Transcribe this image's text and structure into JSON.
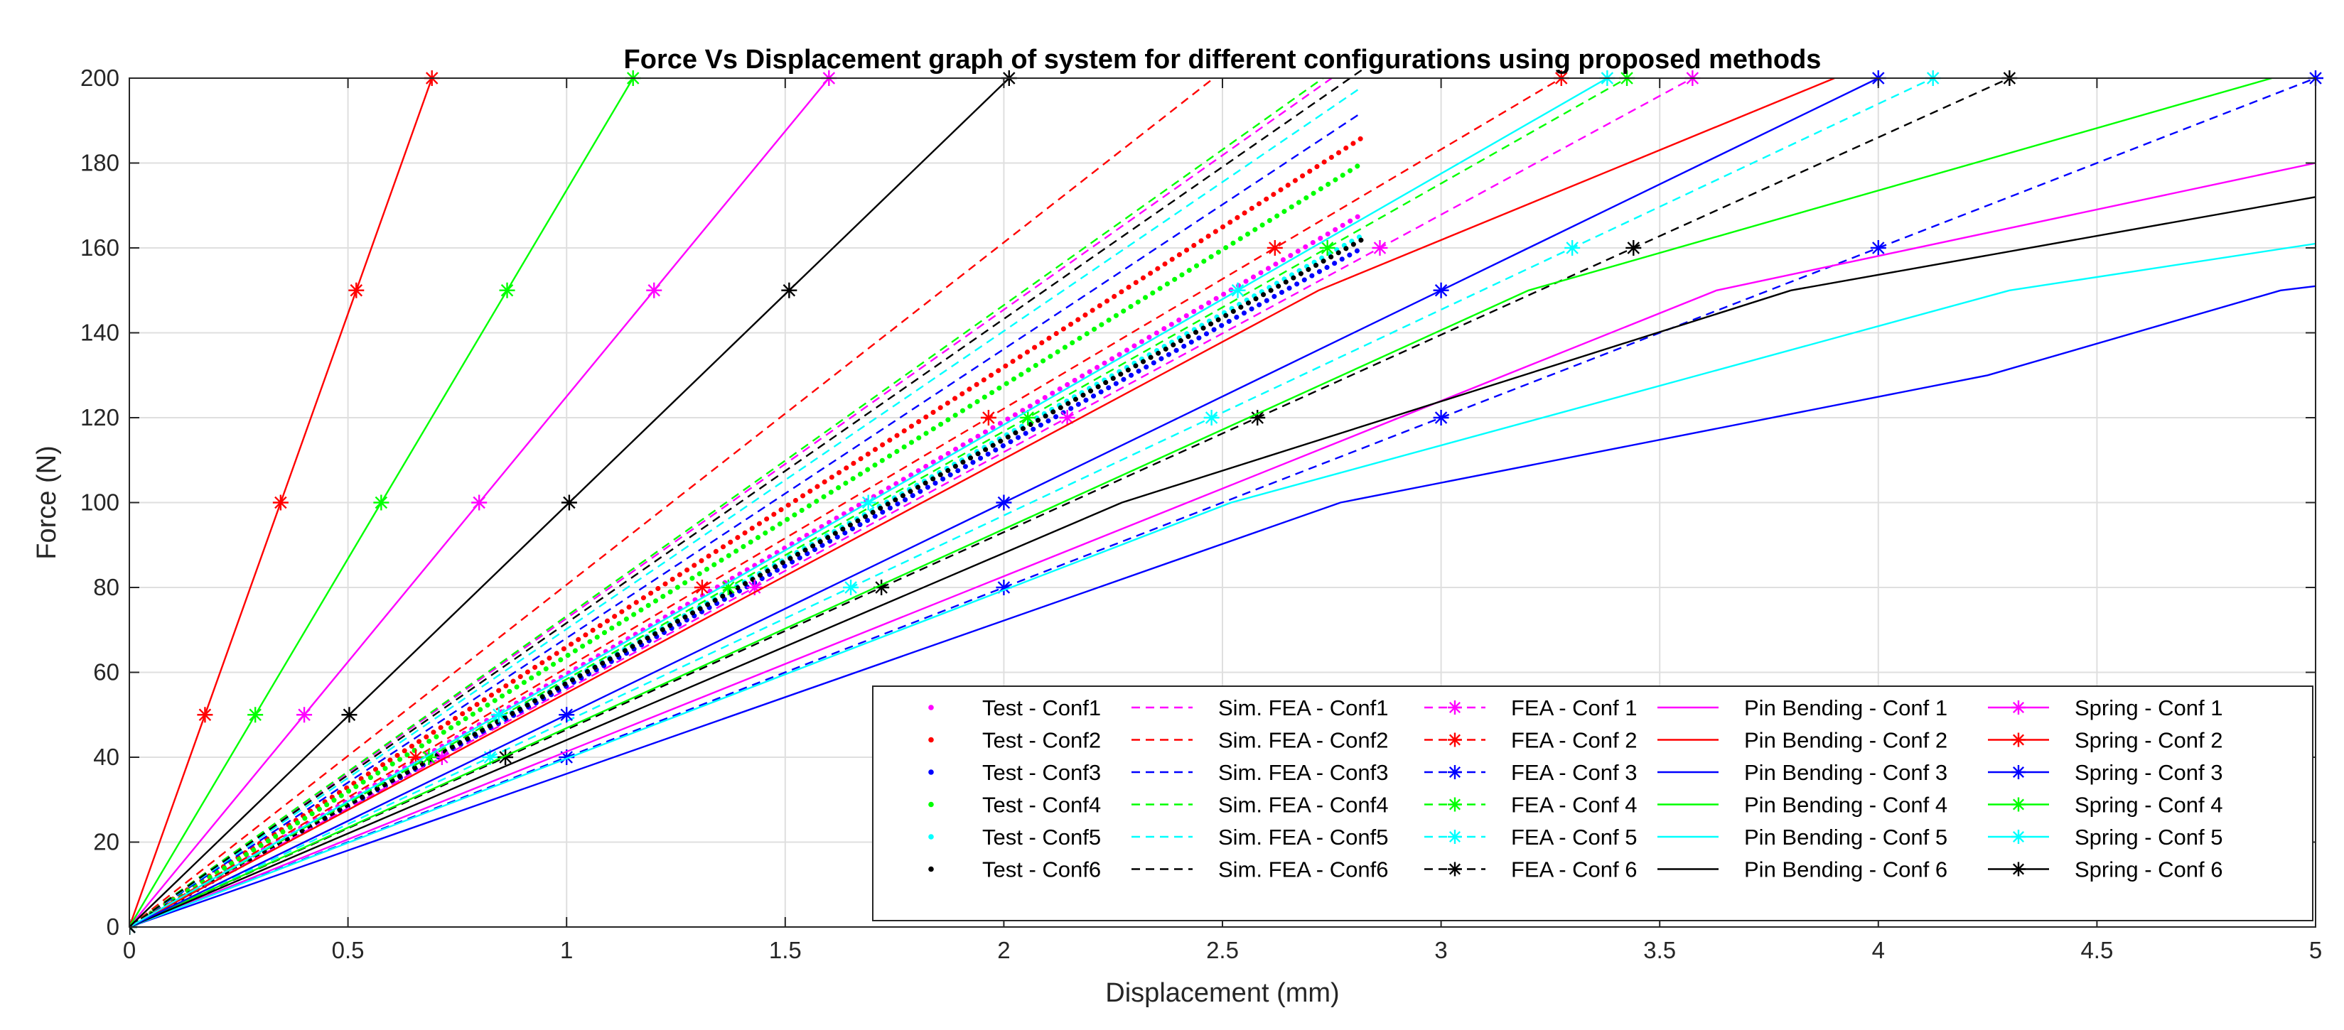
{
  "chart_data": {
    "type": "line",
    "title": "Force Vs Displacement graph of system for different configurations using proposed methods",
    "xlabel": "Displacement (mm)",
    "ylabel": "Force (N)",
    "xlim": [
      0,
      5
    ],
    "ylim": [
      0,
      200
    ],
    "xticks": [
      0,
      0.5,
      1,
      1.5,
      2,
      2.5,
      3,
      3.5,
      4,
      4.5,
      5
    ],
    "yticks": [
      0,
      20,
      40,
      60,
      80,
      100,
      120,
      140,
      160,
      180,
      200
    ],
    "xtick_labels": [
      "0",
      "0.5",
      "1",
      "1.5",
      "2",
      "2.5",
      "3",
      "3.5",
      "4",
      "4.5",
      "5"
    ],
    "ytick_labels": [
      "0",
      "20",
      "40",
      "60",
      "80",
      "100",
      "120",
      "140",
      "160",
      "180",
      "200"
    ],
    "grid": true,
    "legend_position": "bottom-right",
    "series": [
      {
        "name": "Test - Conf1",
        "color": "#ff00ff",
        "style": "dotted",
        "marker": "none",
        "x": [
          0,
          2.82
        ],
        "y": [
          0,
          168
        ]
      },
      {
        "name": "Test - Conf2",
        "color": "#ff0000",
        "style": "dotted",
        "marker": "none",
        "x": [
          0,
          2.82
        ],
        "y": [
          0,
          186
        ]
      },
      {
        "name": "Test - Conf3",
        "color": "#0000ff",
        "style": "dotted",
        "marker": "none",
        "x": [
          0,
          2.82
        ],
        "y": [
          0,
          160
        ]
      },
      {
        "name": "Test - Conf4",
        "color": "#00ff00",
        "style": "dotted",
        "marker": "none",
        "x": [
          0,
          2.82
        ],
        "y": [
          0,
          180
        ]
      },
      {
        "name": "Test - Conf5",
        "color": "#00ffff",
        "style": "dotted",
        "marker": "none",
        "x": [
          0,
          2.82
        ],
        "y": [
          0,
          163
        ]
      },
      {
        "name": "Test - Conf6",
        "color": "#000000",
        "style": "dotted",
        "marker": "none",
        "x": [
          0,
          2.82
        ],
        "y": [
          0,
          162
        ]
      },
      {
        "name": "Sim. FEA - Conf1",
        "color": "#ff00ff",
        "style": "dashed",
        "marker": "none",
        "x": [
          0,
          2.75
        ],
        "y": [
          0,
          200
        ]
      },
      {
        "name": "Sim. FEA - Conf2",
        "color": "#ff0000",
        "style": "dashed",
        "marker": "none",
        "x": [
          0,
          2.48
        ],
        "y": [
          0,
          200
        ]
      },
      {
        "name": "Sim. FEA - Conf3",
        "color": "#0000ff",
        "style": "dashed",
        "marker": "none",
        "x": [
          0,
          2.82
        ],
        "y": [
          0,
          192
        ]
      },
      {
        "name": "Sim. FEA - Conf4",
        "color": "#00ff00",
        "style": "dashed",
        "marker": "none",
        "x": [
          0,
          2.73
        ],
        "y": [
          0,
          200
        ]
      },
      {
        "name": "Sim. FEA - Conf5",
        "color": "#00ffff",
        "style": "dashed",
        "marker": "none",
        "x": [
          0,
          2.82
        ],
        "y": [
          0,
          198
        ]
      },
      {
        "name": "Sim. FEA - Conf6",
        "color": "#000000",
        "style": "dashed",
        "marker": "none",
        "x": [
          0,
          2.82
        ],
        "y": [
          0,
          202
        ]
      },
      {
        "name": "FEA - Conf 1",
        "color": "#ff00ff",
        "style": "dashed",
        "marker": "asterisk",
        "x": [
          0,
          0.715,
          1.43,
          2.145,
          2.86,
          3.575
        ],
        "y": [
          0,
          40,
          80,
          120,
          160,
          200
        ]
      },
      {
        "name": "FEA - Conf 2",
        "color": "#ff0000",
        "style": "dashed",
        "marker": "asterisk",
        "x": [
          0,
          0.655,
          1.31,
          1.965,
          2.62,
          3.275
        ],
        "y": [
          0,
          40,
          80,
          120,
          160,
          200
        ]
      },
      {
        "name": "FEA - Conf 3",
        "color": "#0000ff",
        "style": "dashed",
        "marker": "asterisk",
        "x": [
          0,
          1.0,
          2.0,
          3.0,
          4.0,
          5.0
        ],
        "y": [
          0,
          40,
          80,
          120,
          160,
          200
        ]
      },
      {
        "name": "FEA - Conf 4",
        "color": "#00ff00",
        "style": "dashed",
        "marker": "asterisk",
        "x": [
          0,
          0.685,
          1.37,
          2.055,
          2.74,
          3.425
        ],
        "y": [
          0,
          40,
          80,
          120,
          160,
          200
        ]
      },
      {
        "name": "FEA - Conf 5",
        "color": "#00ffff",
        "style": "dashed",
        "marker": "asterisk",
        "x": [
          0,
          0.825,
          1.65,
          2.475,
          3.3,
          4.125
        ],
        "y": [
          0,
          40,
          80,
          120,
          160,
          200
        ]
      },
      {
        "name": "FEA - Conf 6",
        "color": "#000000",
        "style": "dashed",
        "marker": "asterisk",
        "x": [
          0,
          0.86,
          1.72,
          2.58,
          3.44,
          4.3
        ],
        "y": [
          0,
          40,
          80,
          120,
          160,
          200
        ]
      },
      {
        "name": "Pin Bending - Conf 1",
        "color": "#ff00ff",
        "style": "solid",
        "marker": "none",
        "x": [
          0,
          3.63,
          5.0
        ],
        "y": [
          0,
          150,
          180
        ]
      },
      {
        "name": "Pin Bending - Conf 2",
        "color": "#ff0000",
        "style": "solid",
        "marker": "none",
        "x": [
          0,
          2.72,
          3.9
        ],
        "y": [
          0,
          150,
          200
        ]
      },
      {
        "name": "Pin Bending - Conf 3",
        "color": "#0000ff",
        "style": "solid",
        "marker": "none",
        "x": [
          0,
          2.77,
          4.25,
          4.92,
          5.0
        ],
        "y": [
          0,
          100,
          130,
          150,
          151
        ]
      },
      {
        "name": "Pin Bending - Conf 4",
        "color": "#00ff00",
        "style": "solid",
        "marker": "none",
        "x": [
          0,
          3.2,
          4.9
        ],
        "y": [
          0,
          150,
          200
        ]
      },
      {
        "name": "Pin Bending - Conf 5",
        "color": "#00ffff",
        "style": "solid",
        "marker": "none",
        "x": [
          0,
          2.52,
          4.3,
          5.0
        ],
        "y": [
          0,
          100,
          150,
          161
        ]
      },
      {
        "name": "Pin Bending - Conf 6",
        "color": "#000000",
        "style": "solid",
        "marker": "none",
        "x": [
          0,
          2.27,
          3.8,
          5.0
        ],
        "y": [
          0,
          100,
          150,
          172
        ]
      },
      {
        "name": "Spring - Conf 1",
        "color": "#ff00ff",
        "style": "solid",
        "marker": "asterisk",
        "x": [
          0,
          0.4,
          0.8,
          1.2,
          1.6
        ],
        "y": [
          0,
          50,
          100,
          150,
          200
        ]
      },
      {
        "name": "Spring - Conf 2",
        "color": "#ff0000",
        "style": "solid",
        "marker": "asterisk",
        "x": [
          0,
          0.173,
          0.346,
          0.519,
          0.692
        ],
        "y": [
          0,
          50,
          100,
          150,
          200
        ]
      },
      {
        "name": "Spring - Conf 3",
        "color": "#0000ff",
        "style": "solid",
        "marker": "asterisk",
        "x": [
          0,
          1.0,
          2.0,
          3.0,
          4.0
        ],
        "y": [
          0,
          50,
          100,
          150,
          200
        ]
      },
      {
        "name": "Spring - Conf 4",
        "color": "#00ff00",
        "style": "solid",
        "marker": "asterisk",
        "x": [
          0,
          0.288,
          0.576,
          0.864,
          1.152
        ],
        "y": [
          0,
          50,
          100,
          150,
          200
        ]
      },
      {
        "name": "Spring - Conf 5",
        "color": "#00ffff",
        "style": "solid",
        "marker": "asterisk",
        "x": [
          0,
          0.845,
          1.69,
          2.535,
          3.38
        ],
        "y": [
          0,
          50,
          100,
          150,
          200
        ]
      },
      {
        "name": "Spring - Conf 6",
        "color": "#000000",
        "style": "solid",
        "marker": "asterisk",
        "x": [
          0,
          0.503,
          1.006,
          1.509,
          2.012
        ],
        "y": [
          0,
          50,
          100,
          150,
          200
        ]
      }
    ]
  }
}
